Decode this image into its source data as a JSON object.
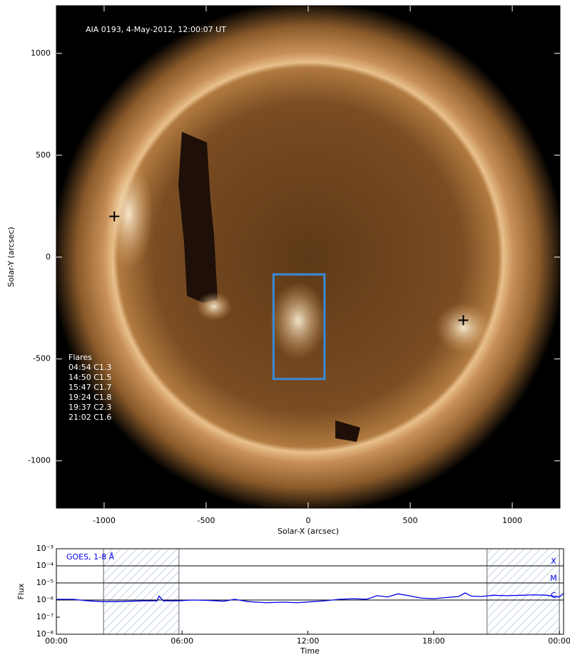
{
  "chart_data": [
    {
      "type": "image",
      "title": "AIA 0193, 4-May-2012, 12:00:07 UT",
      "xlabel": "Solar-X (arcsec)",
      "ylabel": "Solar-Y (arcsec)",
      "xlim": [
        -1234,
        1234
      ],
      "ylim": [
        -1232,
        1234
      ],
      "xticks": [
        -1000,
        -500,
        0,
        500,
        1000
      ],
      "yticks": [
        -1000,
        -500,
        0,
        500,
        1000
      ],
      "box": {
        "x": [
          -170,
          80
        ],
        "y": [
          -85,
          -598
        ],
        "color": "#3a8ad8"
      },
      "markers": {
        "x": [
          -950,
          760
        ],
        "y": [
          200,
          -310
        ]
      },
      "annotation_title": "Flares",
      "annotations": [
        "04:54 C1.3",
        "14:50 C1.5",
        "15:47 C1.7",
        "19:24 C1.8",
        "19:37 C2.3",
        "21:02 C1.6"
      ]
    },
    {
      "type": "line",
      "xlabel": "Time",
      "ylabel": "Flux",
      "log_y": true,
      "xlim": [
        0,
        24.2
      ],
      "ylim": [
        1e-08,
        0.001
      ],
      "xticks": [
        {
          "value": 0,
          "label": "00:00"
        },
        {
          "value": 6,
          "label": "06:00"
        },
        {
          "value": 12,
          "label": "12:00"
        },
        {
          "value": 18,
          "label": "18:00"
        },
        {
          "value": 24,
          "label": "00:00"
        }
      ],
      "yticks": [
        {
          "value": 1e-08,
          "label": "10⁻⁸"
        },
        {
          "value": 1e-07,
          "label": "10⁻⁷"
        },
        {
          "value": 1e-06,
          "label": "10⁻⁶"
        },
        {
          "value": 1e-05,
          "label": "10⁻⁵"
        },
        {
          "value": 0.0001,
          "label": "10⁻⁴"
        },
        {
          "value": 0.001,
          "label": "10⁻³"
        }
      ],
      "shaded_intervals": [
        [
          2.25,
          5.85
        ],
        [
          20.55,
          24.0
        ]
      ],
      "levels": [
        {
          "label": "X",
          "value": 0.0001
        },
        {
          "label": "M",
          "value": 1e-05
        },
        {
          "label": "C",
          "value": 1e-06
        }
      ],
      "series": [
        {
          "name": "GOES, 1-8 Å",
          "color": "#0000ee",
          "x": [
            0,
            0.8,
            1.5,
            2.2,
            2.8,
            3.5,
            4.2,
            4.8,
            4.9,
            5.1,
            5.8,
            6.5,
            7.2,
            8,
            8.5,
            9.2,
            10,
            10.8,
            11.5,
            12.2,
            12.8,
            13.5,
            14.2,
            14.8,
            15.3,
            15.8,
            16.3,
            16.8,
            17.4,
            18,
            18.6,
            19.2,
            19.5,
            19.8,
            20.3,
            20.8,
            21.5,
            22.2,
            22.8,
            23.4,
            24,
            24.2
          ],
          "values": [
            1.1e-06,
            1.1e-06,
            9e-07,
            8e-07,
            8e-07,
            8.5e-07,
            9e-07,
            9e-07,
            1.7e-06,
            9e-07,
            9e-07,
            1e-06,
            9.5e-07,
            8.5e-07,
            1.1e-06,
            8e-07,
            7e-07,
            7.5e-07,
            7e-07,
            8e-07,
            9e-07,
            1.1e-06,
            1.2e-06,
            1.1e-06,
            1.8e-06,
            1.5e-06,
            2.3e-06,
            1.8e-06,
            1.3e-06,
            1.2e-06,
            1.4e-06,
            1.6e-06,
            2.6e-06,
            1.7e-06,
            1.6e-06,
            1.9e-06,
            1.8e-06,
            1.9e-06,
            2e-06,
            1.9e-06,
            1.5e-06,
            2.5e-06
          ]
        }
      ]
    }
  ]
}
